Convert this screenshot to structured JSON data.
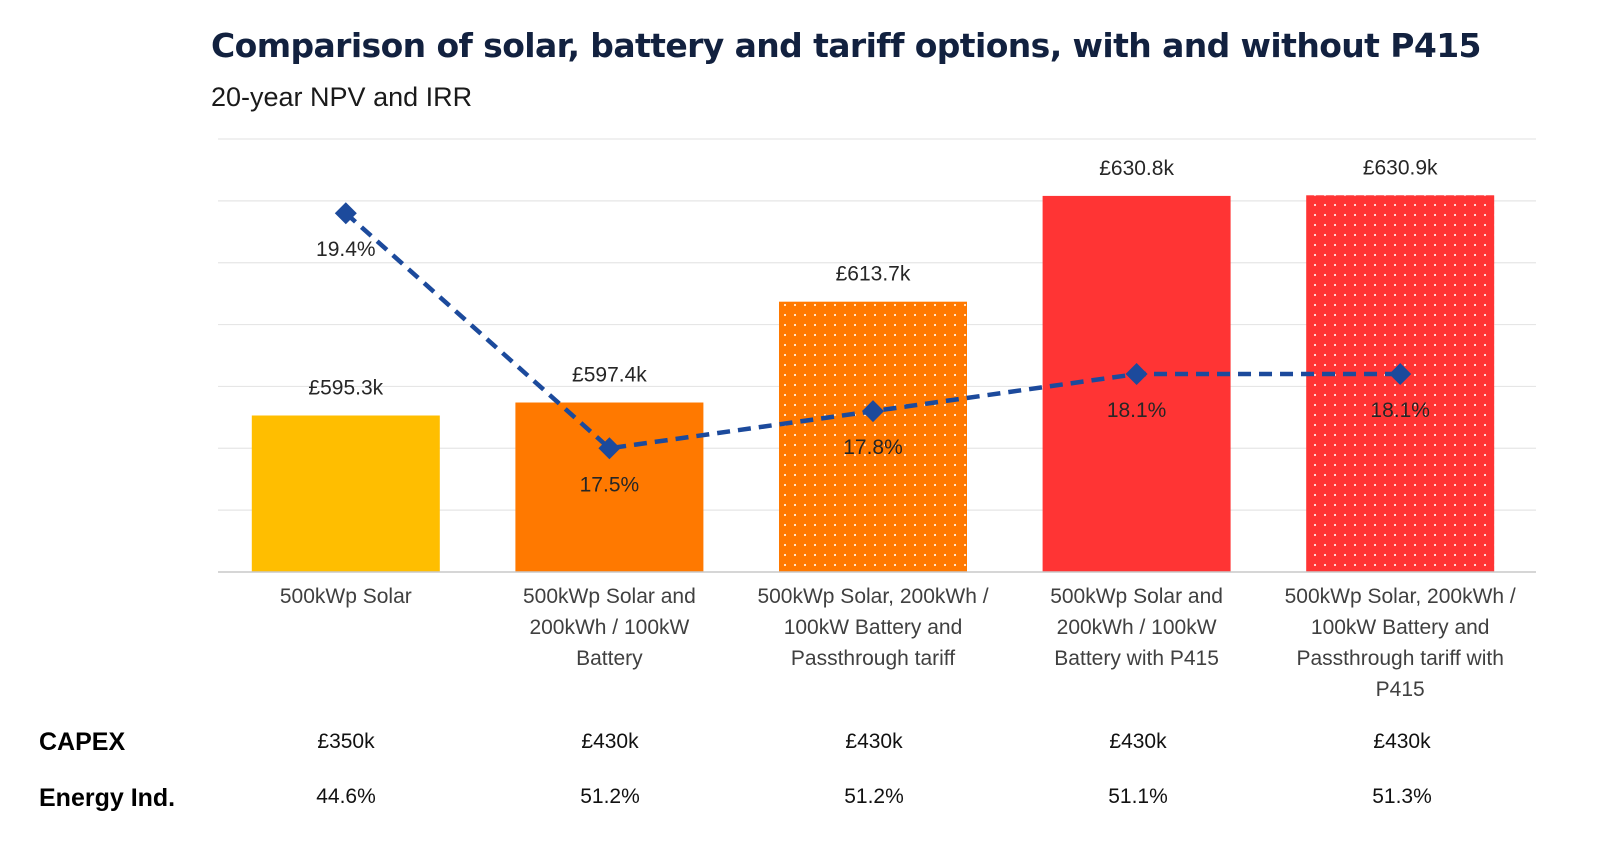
{
  "colors": {
    "bar_yellow": "#FFBE00",
    "bar_orange": "#FF7900",
    "bar_red": "#FF3434",
    "line_blue": "#1C4A9C",
    "gridline": "#E6E6E6",
    "axis": "#C8C8C8",
    "title": "#12213F"
  },
  "chart_data": {
    "type": "bar",
    "title": "Comparison of solar, battery and tariff options, with and without P415",
    "subtitle": "20-year NPV and IRR",
    "xlabel": "",
    "ylabel": "",
    "grid": true,
    "legend": "none",
    "categories": [
      "500kWp Solar",
      "500kWp Solar and 200kWh / 100kW Battery",
      "500kWp Solar, 200kWh / 100kW Battery and Passthrough tariff",
      "500kWp Solar and 200kWh / 100kW Battery with P415",
      "500kWp Solar, 200kWh / 100kW Battery and Passthrough tariff with P415"
    ],
    "category_lines": [
      [
        "500kWp Solar"
      ],
      [
        "500kWp Solar and",
        "200kWh / 100kW",
        "Battery"
      ],
      [
        "500kWp Solar, 200kWh /",
        "100kW Battery and",
        "Passthrough tariff"
      ],
      [
        "500kWp Solar and",
        "200kWh / 100kW",
        "Battery with P415"
      ],
      [
        "500kWp Solar, 200kWh /",
        "100kW Battery and",
        "Passthrough tariff with",
        "P415"
      ]
    ],
    "series": [
      {
        "name": "20-year NPV",
        "type": "bar",
        "unit": "£k",
        "values": [
          595.3,
          597.4,
          613.7,
          630.8,
          630.9
        ],
        "labels": [
          "£595.3k",
          "£597.4k",
          "£613.7k",
          "£630.8k",
          "£630.9k"
        ],
        "fill_colors": [
          "bar_yellow",
          "bar_orange",
          "bar_orange",
          "bar_red",
          "bar_red"
        ],
        "dotted_pattern": [
          false,
          false,
          true,
          false,
          true
        ]
      },
      {
        "name": "IRR",
        "type": "line",
        "style": "dashed with diamond markers",
        "unit": "%",
        "axis": "secondary",
        "values": [
          19.4,
          17.5,
          17.8,
          18.1,
          18.1
        ],
        "labels": [
          "19.4%",
          "17.5%",
          "17.8%",
          "18.1%",
          "18.1%"
        ]
      }
    ],
    "ylim": [
      570,
      640
    ],
    "ytick_step": 10,
    "y2lim": [
      16.5,
      20.0
    ]
  },
  "table": {
    "rows": [
      {
        "label": "CAPEX",
        "values": [
          "£350k",
          "£430k",
          "£430k",
          "£430k",
          "£430k"
        ]
      },
      {
        "label": "Energy Ind.",
        "values": [
          "44.6%",
          "51.2%",
          "51.2%",
          "51.1%",
          "51.3%"
        ]
      }
    ]
  }
}
